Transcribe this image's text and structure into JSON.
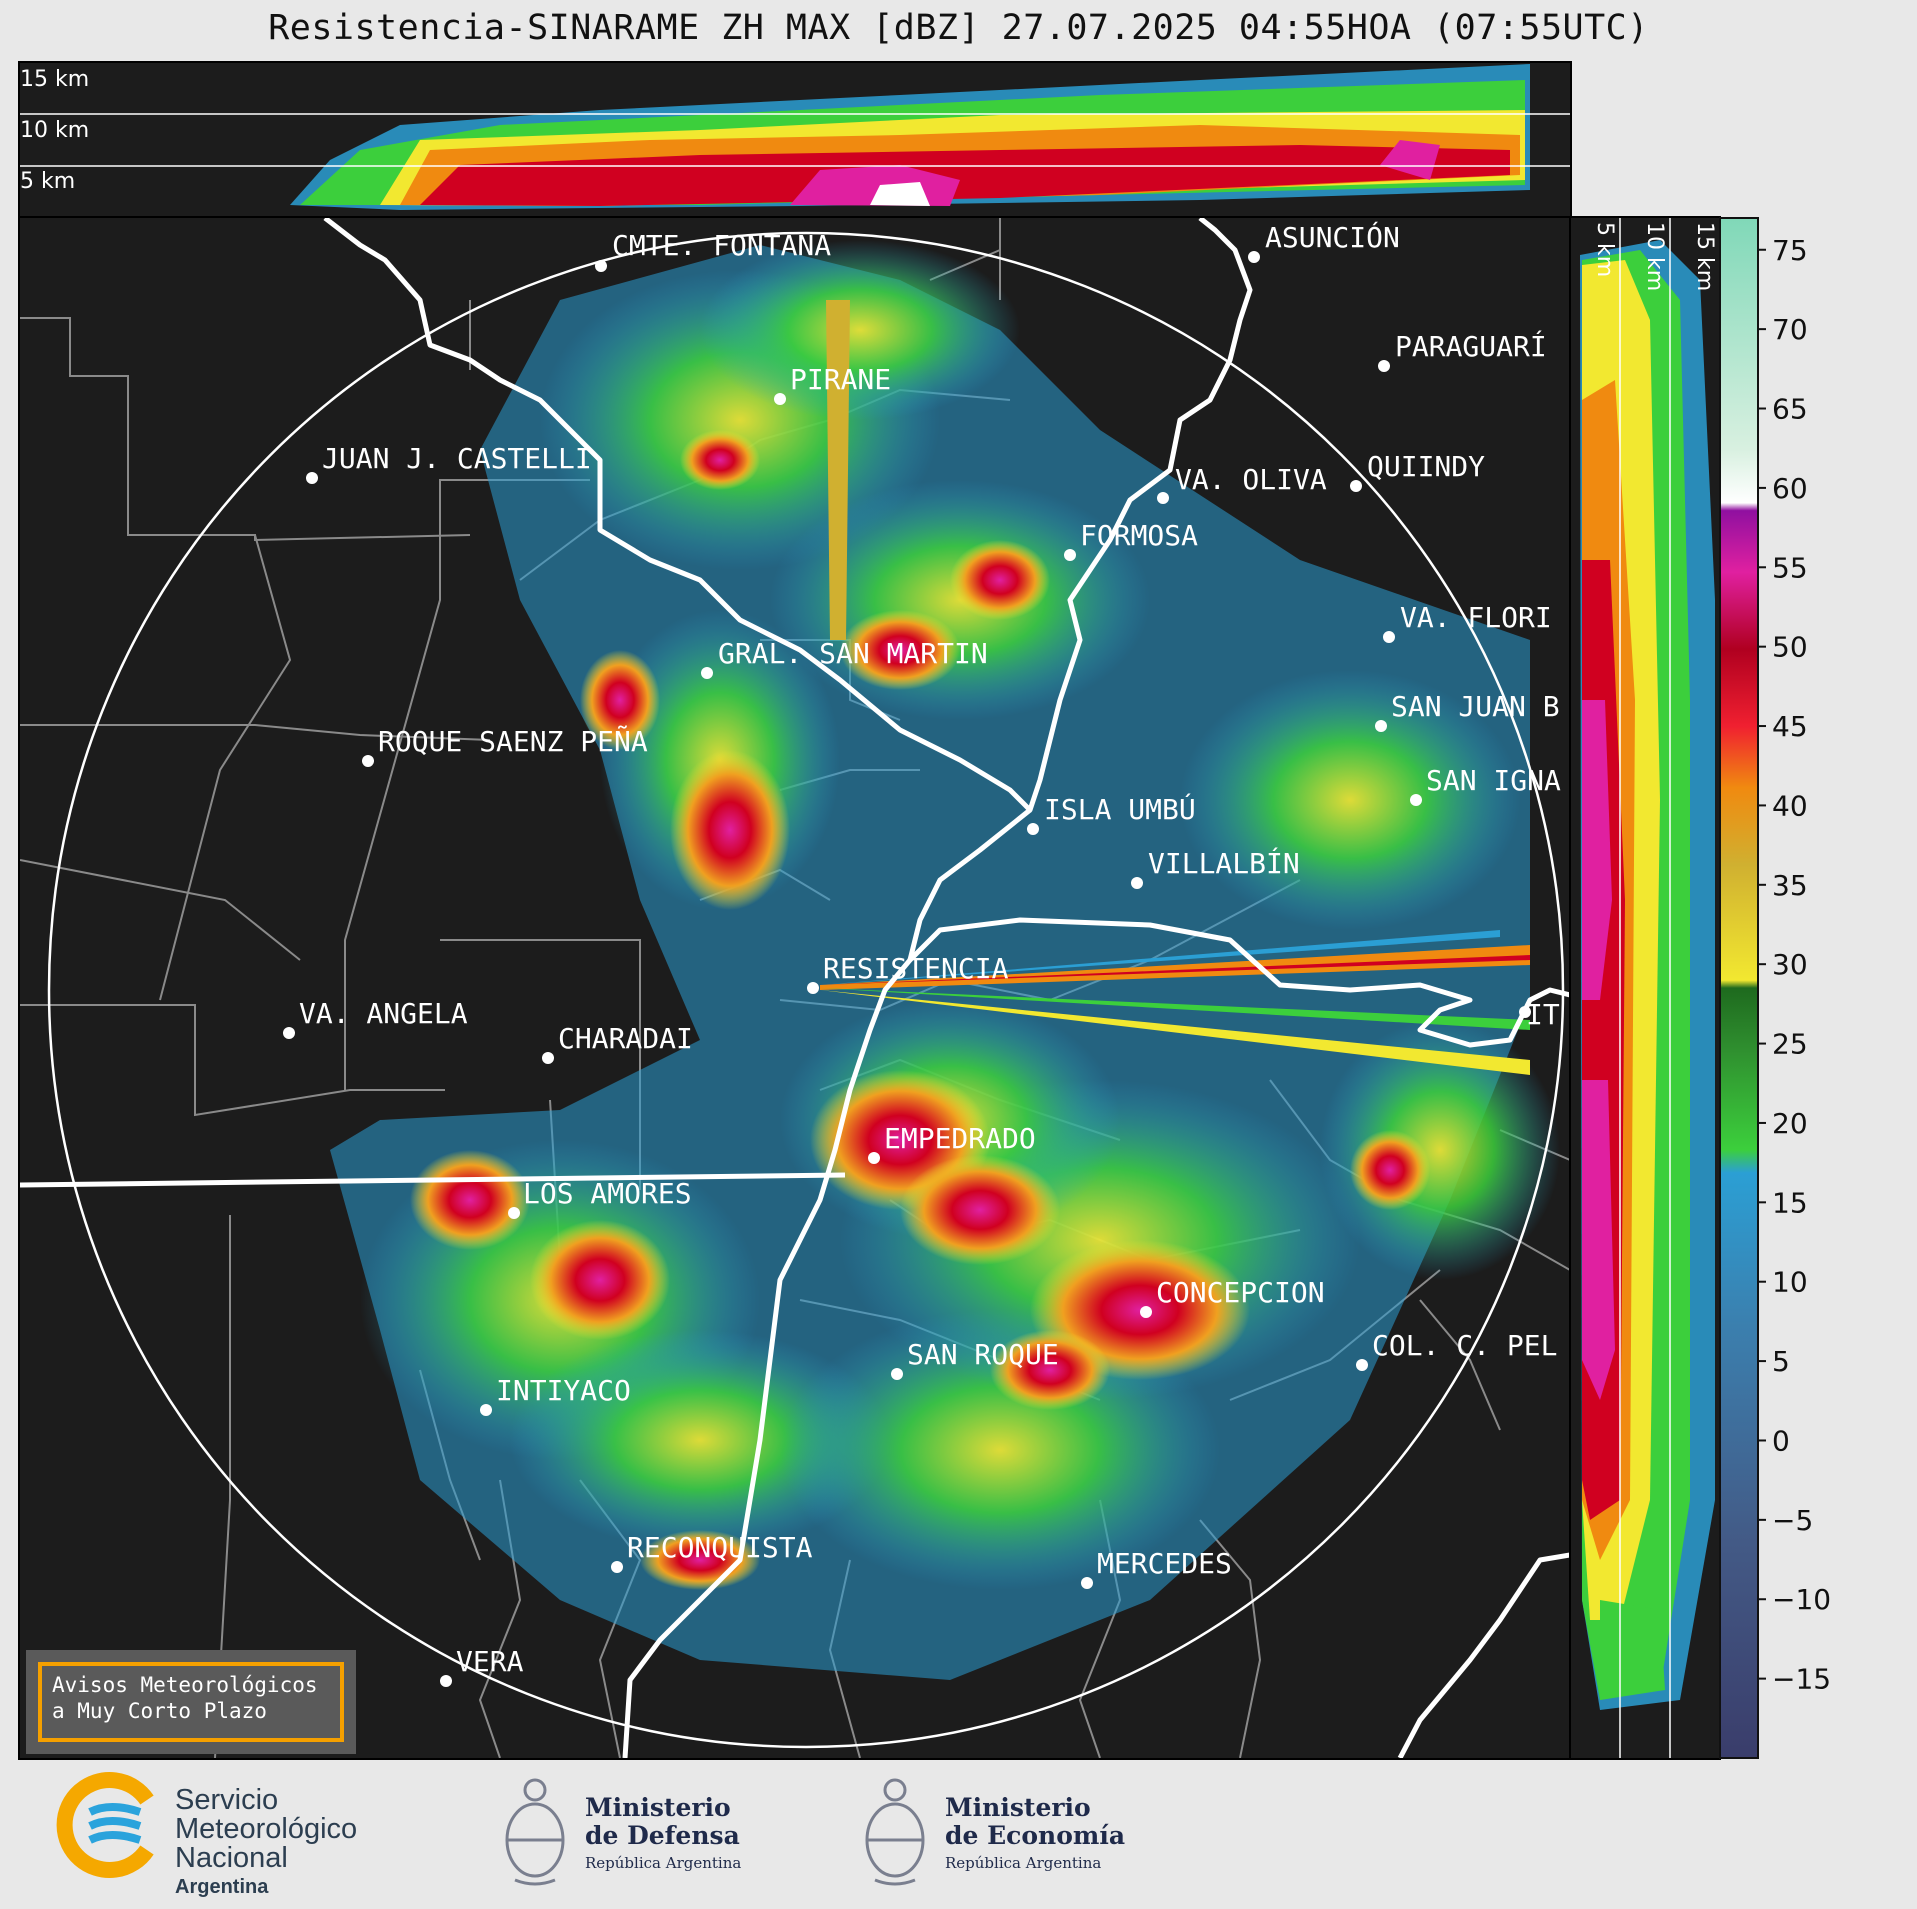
{
  "title": "Resistencia-SINARAME ZH MAX [dBZ] 27.07.2025 04:55HOA (07:55UTC)",
  "top_panel": {
    "altitude_labels": [
      "15 km",
      "10 km",
      "5 km"
    ]
  },
  "side_panel": {
    "altitude_labels": [
      "5 km",
      "10 km",
      "15 km"
    ]
  },
  "colorbar": {
    "unit": "dBZ",
    "ticks": [
      "75",
      "70",
      "65",
      "60",
      "55",
      "50",
      "45",
      "40",
      "35",
      "30",
      "25",
      "20",
      "15",
      "10",
      "5",
      "0",
      "−5",
      "−10",
      "−15"
    ],
    "range": [
      -20,
      77
    ]
  },
  "cities": [
    {
      "name": "CMTE. FONTANA"
    },
    {
      "name": "ASUNCIÓN"
    },
    {
      "name": "PARAGUARÍ"
    },
    {
      "name": "PIRANE"
    },
    {
      "name": "JUAN J. CASTELLI"
    },
    {
      "name": "VA. OLIVA"
    },
    {
      "name": "QUIINDY"
    },
    {
      "name": "FORMOSA"
    },
    {
      "name": "VA. FLORI"
    },
    {
      "name": "GRAL. SAN MARTIN"
    },
    {
      "name": "SAN JUAN B"
    },
    {
      "name": "ROQUE SAENZ PEÑA"
    },
    {
      "name": "SAN IGNA"
    },
    {
      "name": "ISLA UMBÚ"
    },
    {
      "name": "VILLALBÍN"
    },
    {
      "name": "RESISTENCIA"
    },
    {
      "name": "IT"
    },
    {
      "name": "VA. ANGELA"
    },
    {
      "name": "CHARADAI"
    },
    {
      "name": "EMPEDRADO"
    },
    {
      "name": "LOS AMORES"
    },
    {
      "name": "CONCEPCION"
    },
    {
      "name": "COL. C. PEL"
    },
    {
      "name": "SAN ROQUE"
    },
    {
      "name": "INTIYACO"
    },
    {
      "name": "RECONQUISTA"
    },
    {
      "name": "MERCEDES"
    },
    {
      "name": "VERA"
    }
  ],
  "alert_box": {
    "line1": "Avisos Meteorológicos",
    "line2": "a Muy Corto Plazo"
  },
  "logos": {
    "smn": {
      "line1": "Servicio",
      "line2": "Meteorológico",
      "line3": "Nacional",
      "line4": "Argentina"
    },
    "defensa": {
      "line1": "Ministerio",
      "line2": "de Defensa",
      "line3": "República Argentina"
    },
    "economia": {
      "line1": "Ministerio",
      "line2": "de Economía",
      "line3": "República Argentina"
    }
  }
}
